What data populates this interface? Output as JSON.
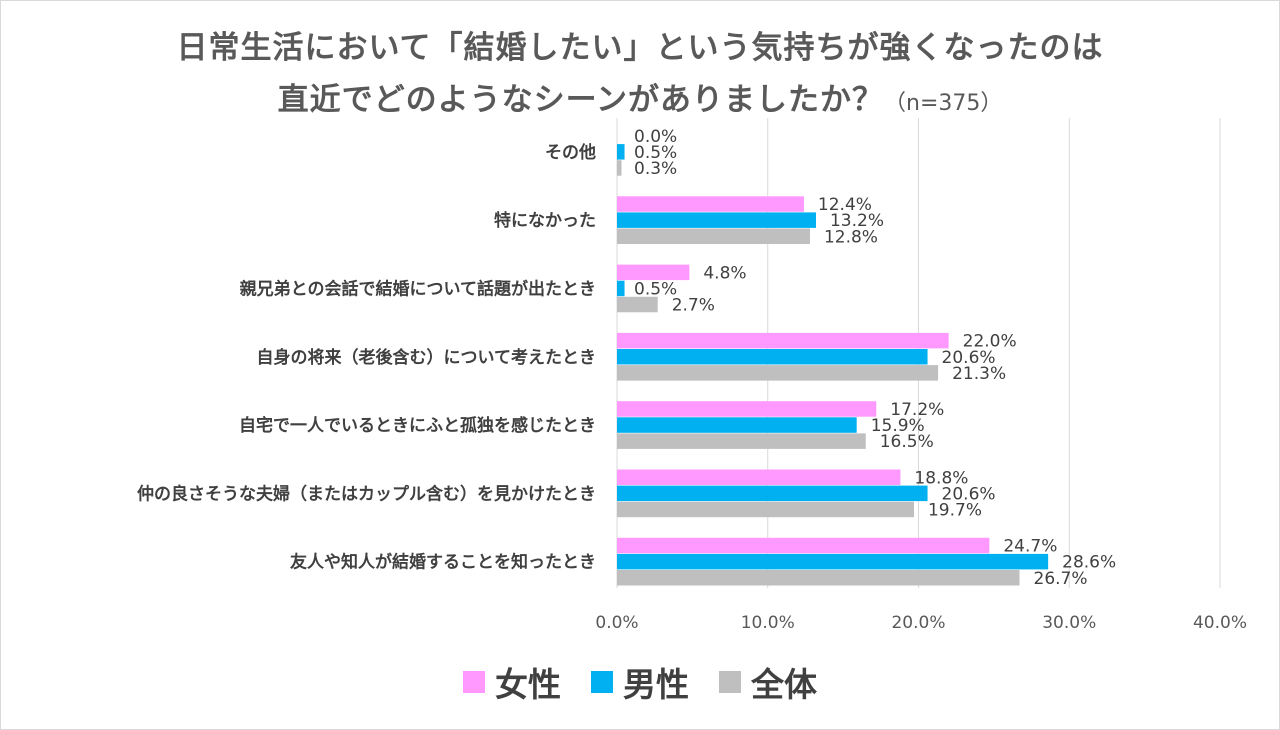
{
  "chart_data": {
    "type": "bar",
    "orientation": "horizontal",
    "title_line1": "日常生活において「結婚したい」という気持ちが強くなったのは",
    "title_line2": "直近でどのようなシーンがありましたか？",
    "sample_note": "（n=375）",
    "categories": [
      "その他",
      "特になかった",
      "親兄弟との会話で結婚について話題が出たとき",
      "自身の将来（老後含む）について考えたとき",
      "自宅で一人でいるときにふと孤独を感じたとき",
      "仲の良さそうな夫婦（またはカップル含む）を見かけたとき",
      "友人や知人が結婚することを知ったとき"
    ],
    "series": [
      {
        "name": "女性",
        "color": "#ff99ff",
        "values": [
          0.0,
          12.4,
          4.8,
          22.0,
          17.2,
          18.8,
          24.7
        ],
        "labels": [
          "0.0%",
          "12.4%",
          "4.8%",
          "22.0%",
          "17.2%",
          "18.8%",
          "24.7%"
        ]
      },
      {
        "name": "男性",
        "color": "#00b0f0",
        "values": [
          0.5,
          13.2,
          0.5,
          20.6,
          15.9,
          20.6,
          28.6
        ],
        "labels": [
          "0.5%",
          "13.2%",
          "0.5%",
          "20.6%",
          "15.9%",
          "20.6%",
          "28.6%"
        ]
      },
      {
        "name": "全体",
        "color": "#bfbfbf",
        "values": [
          0.3,
          12.8,
          2.7,
          21.3,
          16.5,
          19.7,
          26.7
        ],
        "labels": [
          "0.3%",
          "12.8%",
          "2.7%",
          "21.3%",
          "16.5%",
          "19.7%",
          "26.7%"
        ]
      }
    ],
    "xlim": [
      0,
      40
    ],
    "xticks": [
      {
        "value": 0,
        "label": "0.0%"
      },
      {
        "value": 10,
        "label": "10.0%"
      },
      {
        "value": 20,
        "label": "20.0%"
      },
      {
        "value": 30,
        "label": "30.0%"
      },
      {
        "value": 40,
        "label": "40.0%"
      }
    ],
    "grid": true,
    "legend_position": "bottom",
    "grid_color": "#d9d9d9"
  }
}
